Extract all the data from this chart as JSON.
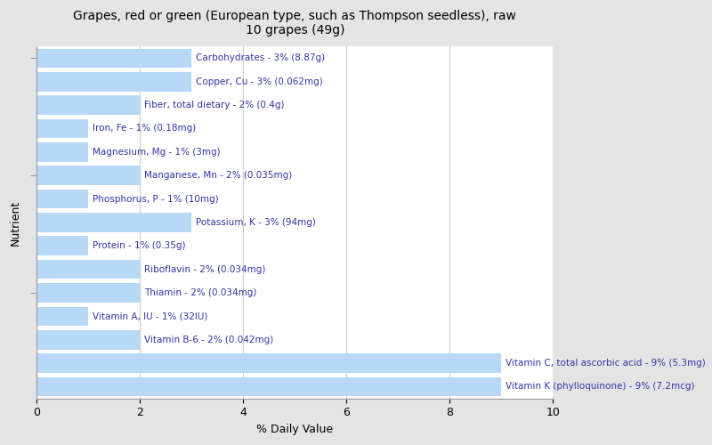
{
  "title": "Grapes, red or green (European type, such as Thompson seedless), raw\n10 grapes (49g)",
  "xlabel": "% Daily Value",
  "ylabel": "Nutrient",
  "xlim": [
    0,
    10
  ],
  "xticks": [
    0,
    2,
    4,
    6,
    8,
    10
  ],
  "background_color": "#e4e4e4",
  "plot_background_color": "#ffffff",
  "bar_color": "#b8d8f8",
  "nutrients": [
    {
      "label": "Carbohydrates - 3% (8.87g)",
      "value": 3
    },
    {
      "label": "Copper, Cu - 3% (0.062mg)",
      "value": 3
    },
    {
      "label": "Fiber, total dietary - 2% (0.4g)",
      "value": 2
    },
    {
      "label": "Iron, Fe - 1% (0.18mg)",
      "value": 1
    },
    {
      "label": "Magnesium, Mg - 1% (3mg)",
      "value": 1
    },
    {
      "label": "Manganese, Mn - 2% (0.035mg)",
      "value": 2
    },
    {
      "label": "Phosphorus, P - 1% (10mg)",
      "value": 1
    },
    {
      "label": "Potassium, K - 3% (94mg)",
      "value": 3
    },
    {
      "label": "Protein - 1% (0.35g)",
      "value": 1
    },
    {
      "label": "Riboflavin - 2% (0.034mg)",
      "value": 2
    },
    {
      "label": "Thiamin - 2% (0.034mg)",
      "value": 2
    },
    {
      "label": "Vitamin A, IU - 1% (32IU)",
      "value": 1
    },
    {
      "label": "Vitamin B-6 - 2% (0.042mg)",
      "value": 2
    },
    {
      "label": "Vitamin C, total ascorbic acid - 9% (5.3mg)",
      "value": 9
    },
    {
      "label": "Vitamin K (phylloquinone) - 9% (7.2mcg)",
      "value": 9
    }
  ],
  "label_color": "#3333aa",
  "title_fontsize": 10,
  "axis_label_fontsize": 9,
  "bar_label_fontsize": 7.5,
  "bar_height": 0.82,
  "grid_color": "#cccccc",
  "spine_color": "#999999",
  "ytick_positions": [
    4,
    9,
    14
  ],
  "figsize": [
    8.0,
    5.0
  ],
  "dpi": 100
}
